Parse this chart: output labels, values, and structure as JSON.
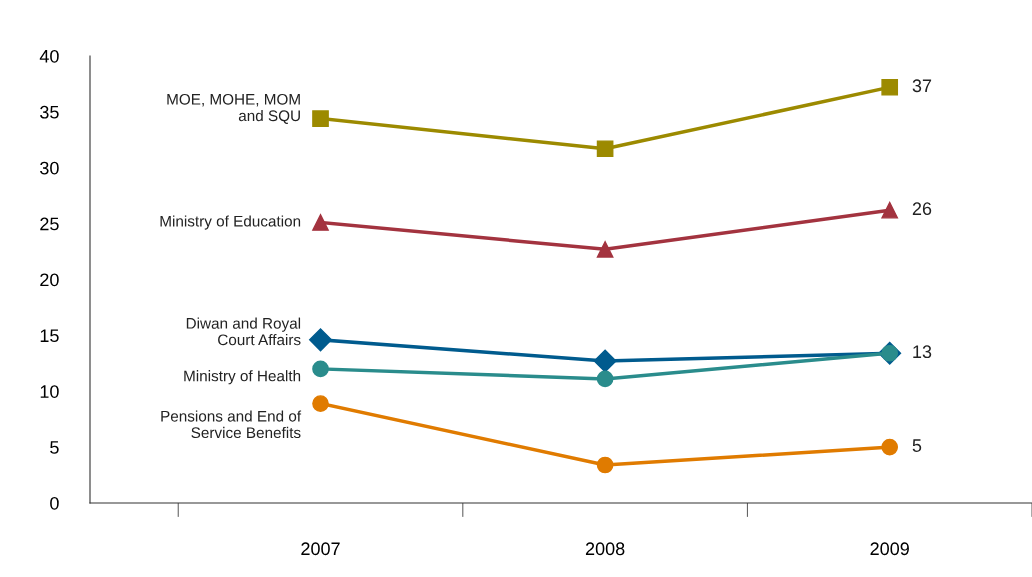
{
  "chart_data": {
    "type": "line",
    "categories": [
      "2007",
      "2008",
      "2009"
    ],
    "series": [
      {
        "name": "MOE, MOHE, MOM\nand SQU",
        "color": "#9c8a00",
        "marker": "square",
        "values": [
          34.4,
          31.7,
          37.2
        ],
        "value_labels": [
          null,
          null,
          "37"
        ]
      },
      {
        "name": "Ministry of Education",
        "color": "#a3333f",
        "marker": "triangle",
        "values": [
          25.1,
          22.7,
          26.2
        ],
        "value_labels": [
          null,
          null,
          "26"
        ]
      },
      {
        "name": "Diwan and Royal\nCourt Affairs",
        "color": "#005b8e",
        "marker": "diamond",
        "values": [
          14.6,
          12.7,
          13.4
        ],
        "value_labels": [
          null,
          null,
          "13"
        ]
      },
      {
        "name": "Ministry of Health",
        "color": "#2a8c8c",
        "marker": "circle",
        "values": [
          12.0,
          11.1,
          13.4
        ],
        "value_labels": [
          null,
          null,
          null
        ]
      },
      {
        "name": "Pensions and End of\nService Benefits",
        "color": "#e07b00",
        "marker": "circle",
        "values": [
          8.9,
          3.4,
          5.0
        ],
        "value_labels": [
          null,
          null,
          "5"
        ]
      }
    ],
    "ylim": [
      0,
      40
    ],
    "yticks": [
      0,
      5,
      10,
      15,
      20,
      25,
      30,
      35,
      40
    ],
    "grid": false,
    "legend": false,
    "line_style": "solid"
  }
}
